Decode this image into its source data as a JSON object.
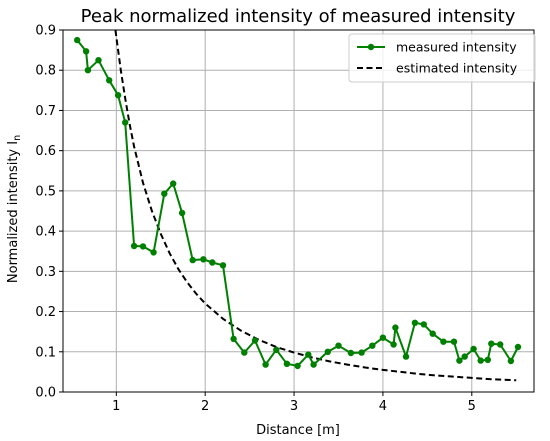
{
  "chart_data": {
    "type": "line",
    "title": "Peak normalized intensity of measured intensity",
    "xlabel": "Distance [m]",
    "ylabel": "Normalized intensity I",
    "ylabel_sub": "n",
    "xlim": [
      0.4,
      5.7
    ],
    "ylim": [
      0.0,
      0.9
    ],
    "xticks": [
      1,
      2,
      3,
      4,
      5
    ],
    "yticks": [
      0.0,
      0.1,
      0.2,
      0.3,
      0.4,
      0.5,
      0.6,
      0.7,
      0.8,
      0.9
    ],
    "xtick_labels": [
      "1",
      "2",
      "3",
      "4",
      "5"
    ],
    "ytick_labels": [
      "0.0",
      "0.1",
      "0.2",
      "0.3",
      "0.4",
      "0.5",
      "0.6",
      "0.7",
      "0.8",
      "0.9"
    ],
    "grid": true,
    "legend_position": "top-right",
    "series": [
      {
        "name": "measured intensity",
        "color": "#008000",
        "style": "solid-with-markers",
        "x": [
          0.56,
          0.66,
          0.68,
          0.8,
          0.92,
          1.02,
          1.1,
          1.2,
          1.3,
          1.42,
          1.54,
          1.64,
          1.74,
          1.86,
          1.98,
          2.08,
          2.2,
          2.32,
          2.44,
          2.56,
          2.68,
          2.8,
          2.92,
          3.04,
          3.16,
          3.22,
          3.38,
          3.5,
          3.64,
          3.76,
          3.88,
          4.0,
          4.12,
          4.14,
          4.26,
          4.36,
          4.46,
          4.56,
          4.68,
          4.8,
          4.86,
          4.92,
          5.02,
          5.1,
          5.18,
          5.22,
          5.32,
          5.44,
          5.52
        ],
        "y": [
          0.875,
          0.847,
          0.8,
          0.825,
          0.775,
          0.738,
          0.67,
          0.363,
          0.362,
          0.347,
          0.493,
          0.518,
          0.445,
          0.328,
          0.33,
          0.322,
          0.315,
          0.132,
          0.098,
          0.128,
          0.068,
          0.105,
          0.07,
          0.065,
          0.093,
          0.068,
          0.1,
          0.115,
          0.097,
          0.098,
          0.115,
          0.135,
          0.118,
          0.16,
          0.088,
          0.172,
          0.168,
          0.145,
          0.125,
          0.125,
          0.078,
          0.088,
          0.107,
          0.078,
          0.08,
          0.12,
          0.118,
          0.077,
          0.112
        ]
      },
      {
        "name": "estimated intensity",
        "color": "#000000",
        "style": "dashed",
        "x": [
          0.99,
          1.05,
          1.1,
          1.15,
          1.2,
          1.3,
          1.4,
          1.5,
          1.6,
          1.7,
          1.8,
          1.9,
          2.0,
          2.2,
          2.4,
          2.6,
          2.8,
          3.0,
          3.2,
          3.4,
          3.6,
          3.8,
          4.0,
          4.2,
          4.4,
          4.6,
          4.8,
          5.0,
          5.2,
          5.5
        ],
        "y": [
          0.9,
          0.8,
          0.73,
          0.665,
          0.61,
          0.52,
          0.45,
          0.393,
          0.345,
          0.305,
          0.272,
          0.244,
          0.22,
          0.182,
          0.153,
          0.13,
          0.112,
          0.098,
          0.086,
          0.076,
          0.068,
          0.061,
          0.055,
          0.05,
          0.045,
          0.041,
          0.038,
          0.035,
          0.032,
          0.029
        ]
      }
    ]
  }
}
